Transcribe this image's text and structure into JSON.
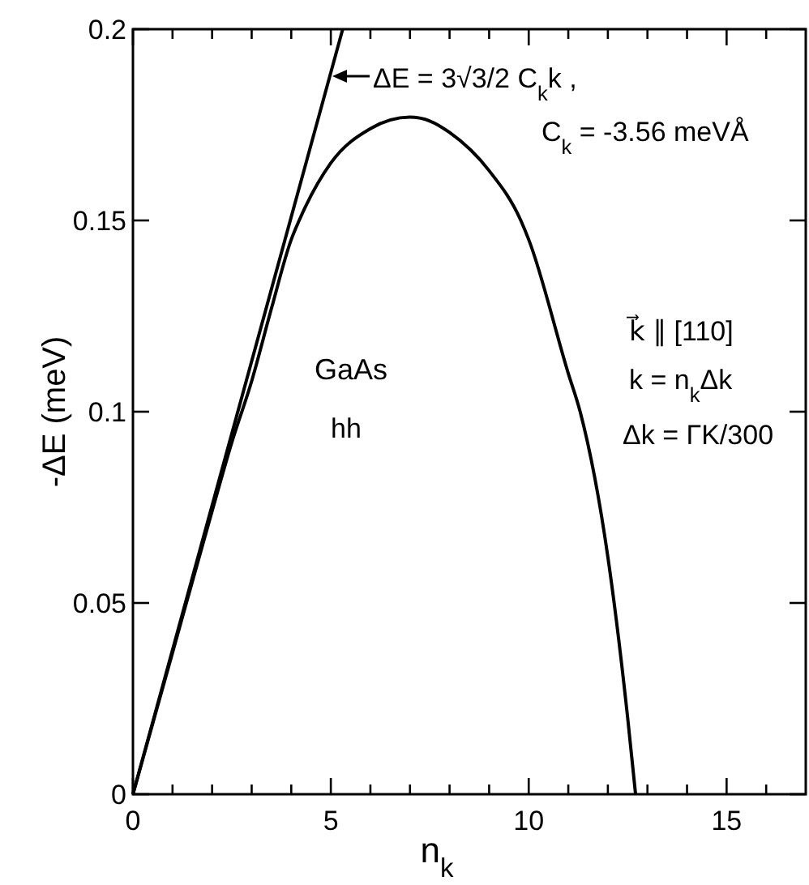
{
  "chart_data": {
    "type": "line",
    "xlabel": "n$_{k}$",
    "ylabel": "-ΔE (meV)",
    "xlim": [
      0,
      17
    ],
    "ylim": [
      0,
      0.2
    ],
    "xticks": [
      0,
      {
        "value": 1,
        "label": null
      },
      {
        "value": 2,
        "label": null
      },
      {
        "value": 3,
        "label": null
      },
      {
        "value": 4,
        "label": null
      },
      5,
      {
        "value": 6,
        "label": null
      },
      {
        "value": 7,
        "label": null
      },
      {
        "value": 8,
        "label": null
      },
      {
        "value": 9,
        "label": null
      },
      10,
      {
        "value": 11,
        "label": null
      },
      {
        "value": 12,
        "label": null
      },
      {
        "value": 13,
        "label": null
      },
      {
        "value": 14,
        "label": null
      },
      15,
      {
        "value": 16,
        "label": null
      }
    ],
    "yticks": [
      0,
      {
        "value": 0.05,
        "label": "0.05"
      },
      {
        "value": 0.1,
        "label": "0.1"
      },
      {
        "value": 0.15,
        "label": "0.15"
      },
      {
        "value": 0.2,
        "label": "0.2"
      }
    ],
    "series": [
      {
        "color": "#000000",
        "x": [
          0,
          5.3
        ],
        "values": [
          0,
          0.2
        ]
      },
      {
        "color": "#000000",
        "x": [
          0,
          1,
          2,
          2.5,
          3,
          3.5,
          4,
          4.2,
          5,
          6,
          7,
          7.5,
          8,
          9,
          9.8,
          10,
          11,
          11.3,
          12,
          12.5,
          12.7
        ],
        "values": [
          0,
          0.037,
          0.074,
          0.092,
          0.108,
          0.127,
          0.145,
          0.15,
          0.165,
          0.174,
          0.177,
          0.176,
          0.173,
          0.163,
          0.15,
          0.145,
          0.11,
          0.1,
          0.062,
          0.02,
          0
        ]
      }
    ],
    "marker": "none",
    "line_style": "solid",
    "grid": false,
    "annotations": [
      "ΔE = 3√3/2 C$_{k}$k ,",
      "C$_{k}$ = -3.56 meVÅ",
      "k⃗ ∥ [110]",
      "k = n$_{k}$Δk",
      "Δk = ΓK/300",
      "GaAs",
      "hh"
    ]
  }
}
